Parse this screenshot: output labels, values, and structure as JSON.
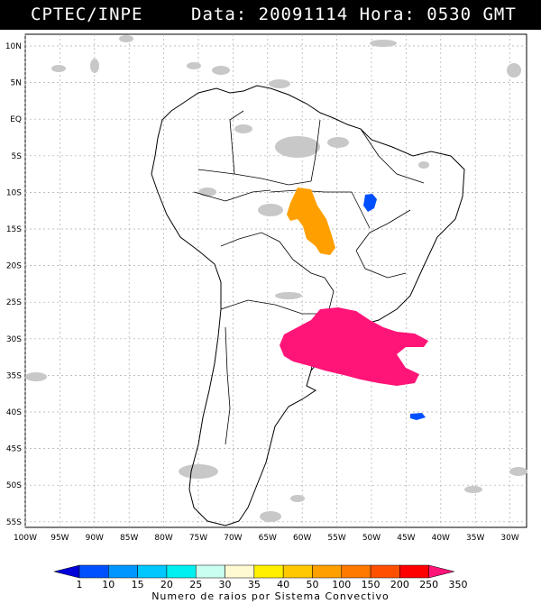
{
  "header": {
    "source": "CPTEC/INPE",
    "date_label": "Data:",
    "date_value": "20091114",
    "time_label": "Hora:",
    "time_value": "0530 GMT"
  },
  "map": {
    "lon_ticks": [
      "100W",
      "95W",
      "90W",
      "85W",
      "80W",
      "75W",
      "70W",
      "65W",
      "60W",
      "55W",
      "50W",
      "45W",
      "40W",
      "35W",
      "30W"
    ],
    "lat_ticks": [
      "10N",
      "5N",
      "EQ",
      "5S",
      "10S",
      "15S",
      "20S",
      "25S",
      "30S",
      "35S",
      "40S",
      "45S",
      "50S",
      "55S"
    ],
    "lon_range": [
      -100,
      -27
    ],
    "lat_range": [
      12,
      -56
    ],
    "gridlines": true
  },
  "colorbar": {
    "labels": [
      "1",
      "10",
      "15",
      "20",
      "25",
      "30",
      "35",
      "40",
      "50",
      "100",
      "150",
      "200",
      "250",
      "350"
    ],
    "colors": [
      "#0000d9",
      "#0050ff",
      "#0096ff",
      "#00c8ff",
      "#00f0f0",
      "#c8fff0",
      "#fffad2",
      "#fff000",
      "#ffc800",
      "#ffa000",
      "#ff7800",
      "#ff5000",
      "#ff0000",
      "#ff1478"
    ],
    "title": "Numero de raios por Sistema Convectivo"
  },
  "systems": [
    {
      "label": "orange-cluster",
      "color": "#ffa000"
    },
    {
      "label": "pink-cluster",
      "color": "#ff1478"
    },
    {
      "label": "blue-cluster",
      "color": "#0050ff"
    }
  ]
}
